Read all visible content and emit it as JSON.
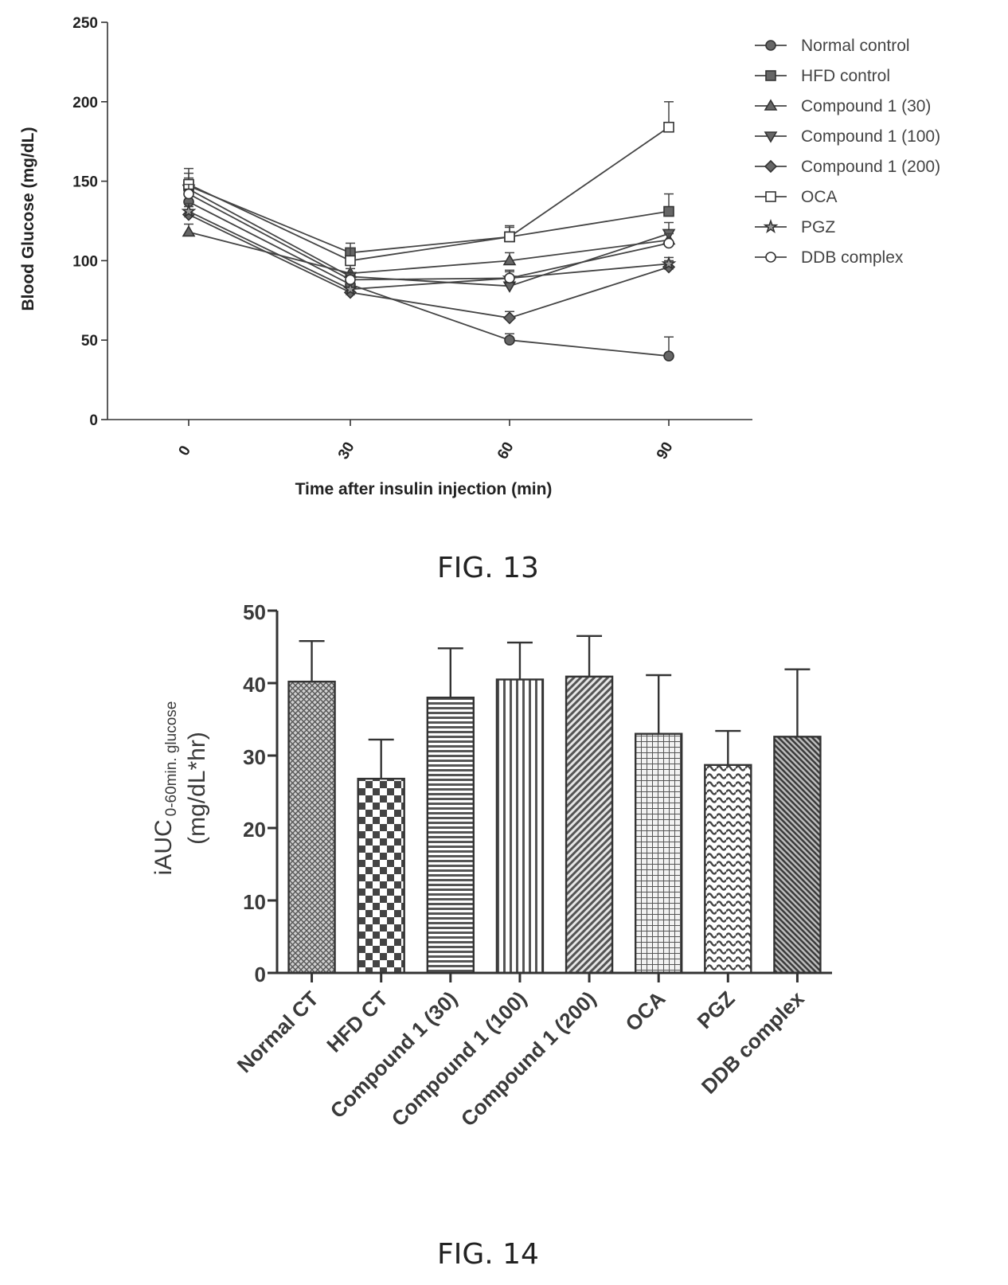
{
  "chart_data": [
    {
      "type": "line",
      "caption": "FIG. 13",
      "xlabel": "Time after insulin injection (min)",
      "ylabel": "Blood Glucose (mg/dL)",
      "x": [
        0,
        30,
        60,
        90
      ],
      "x_tick_labels": [
        "0",
        "30",
        "60",
        "90"
      ],
      "ylim": [
        0,
        250
      ],
      "y_ticks": [
        "0",
        "50",
        "100",
        "150",
        "200",
        "250"
      ],
      "legend_position": "top-right",
      "grid": false,
      "series": [
        {
          "name": "Normal control",
          "marker": "circle-filled",
          "values": [
            137,
            85,
            50,
            40
          ],
          "err": [
            6,
            4,
            4,
            12
          ]
        },
        {
          "name": "HFD control",
          "marker": "square-filled",
          "values": [
            147,
            105,
            115,
            131
          ],
          "err": [
            8,
            6,
            7,
            11
          ]
        },
        {
          "name": "Compound 1 (30)",
          "marker": "triangle-up-filled",
          "values": [
            118,
            92,
            100,
            113
          ],
          "err": [
            5,
            5,
            5,
            6
          ]
        },
        {
          "name": "Compound 1 (100)",
          "marker": "triangle-down-filled",
          "values": [
            145,
            90,
            84,
            117
          ],
          "err": [
            7,
            5,
            5,
            7
          ]
        },
        {
          "name": "Compound 1 (200)",
          "marker": "diamond-filled",
          "values": [
            129,
            80,
            64,
            96
          ],
          "err": [
            5,
            3,
            4,
            4
          ]
        },
        {
          "name": "OCA",
          "marker": "square-open",
          "values": [
            148,
            100,
            115,
            184
          ],
          "err": [
            10,
            8,
            6,
            16
          ]
        },
        {
          "name": "PGZ",
          "marker": "star-filled",
          "values": [
            131,
            82,
            89,
            98
          ],
          "err": [
            5,
            4,
            4,
            4
          ]
        },
        {
          "name": "DDB complex",
          "marker": "circle-open",
          "values": [
            142,
            88,
            89,
            111
          ],
          "err": [
            6,
            4,
            5,
            6
          ]
        }
      ]
    },
    {
      "type": "bar",
      "caption": "FIG. 14",
      "ylabel_main": "iAUC",
      "ylabel_sub": "0-60min. glucose",
      "ylabel_units": "(mg/dL*hr)",
      "ylim": [
        0,
        50
      ],
      "y_ticks": [
        "0",
        "10",
        "20",
        "30",
        "40",
        "50"
      ],
      "categories": [
        "Normal CT",
        "HFD CT",
        "Compound 1 (30)",
        "Compound 1 (100)",
        "Compound 1 (200)",
        "OCA",
        "PGZ",
        "DDB complex"
      ],
      "values": [
        40.2,
        26.8,
        38.0,
        40.5,
        40.9,
        33.0,
        28.7,
        32.6
      ],
      "err": [
        5.6,
        5.4,
        6.8,
        5.1,
        5.6,
        8.1,
        4.7,
        9.3
      ],
      "patterns": [
        "crosshatch",
        "checker",
        "horizontal-lines",
        "vertical-lines",
        "diagonal-lines",
        "grid",
        "wave",
        "diagonal-dense"
      ]
    }
  ]
}
